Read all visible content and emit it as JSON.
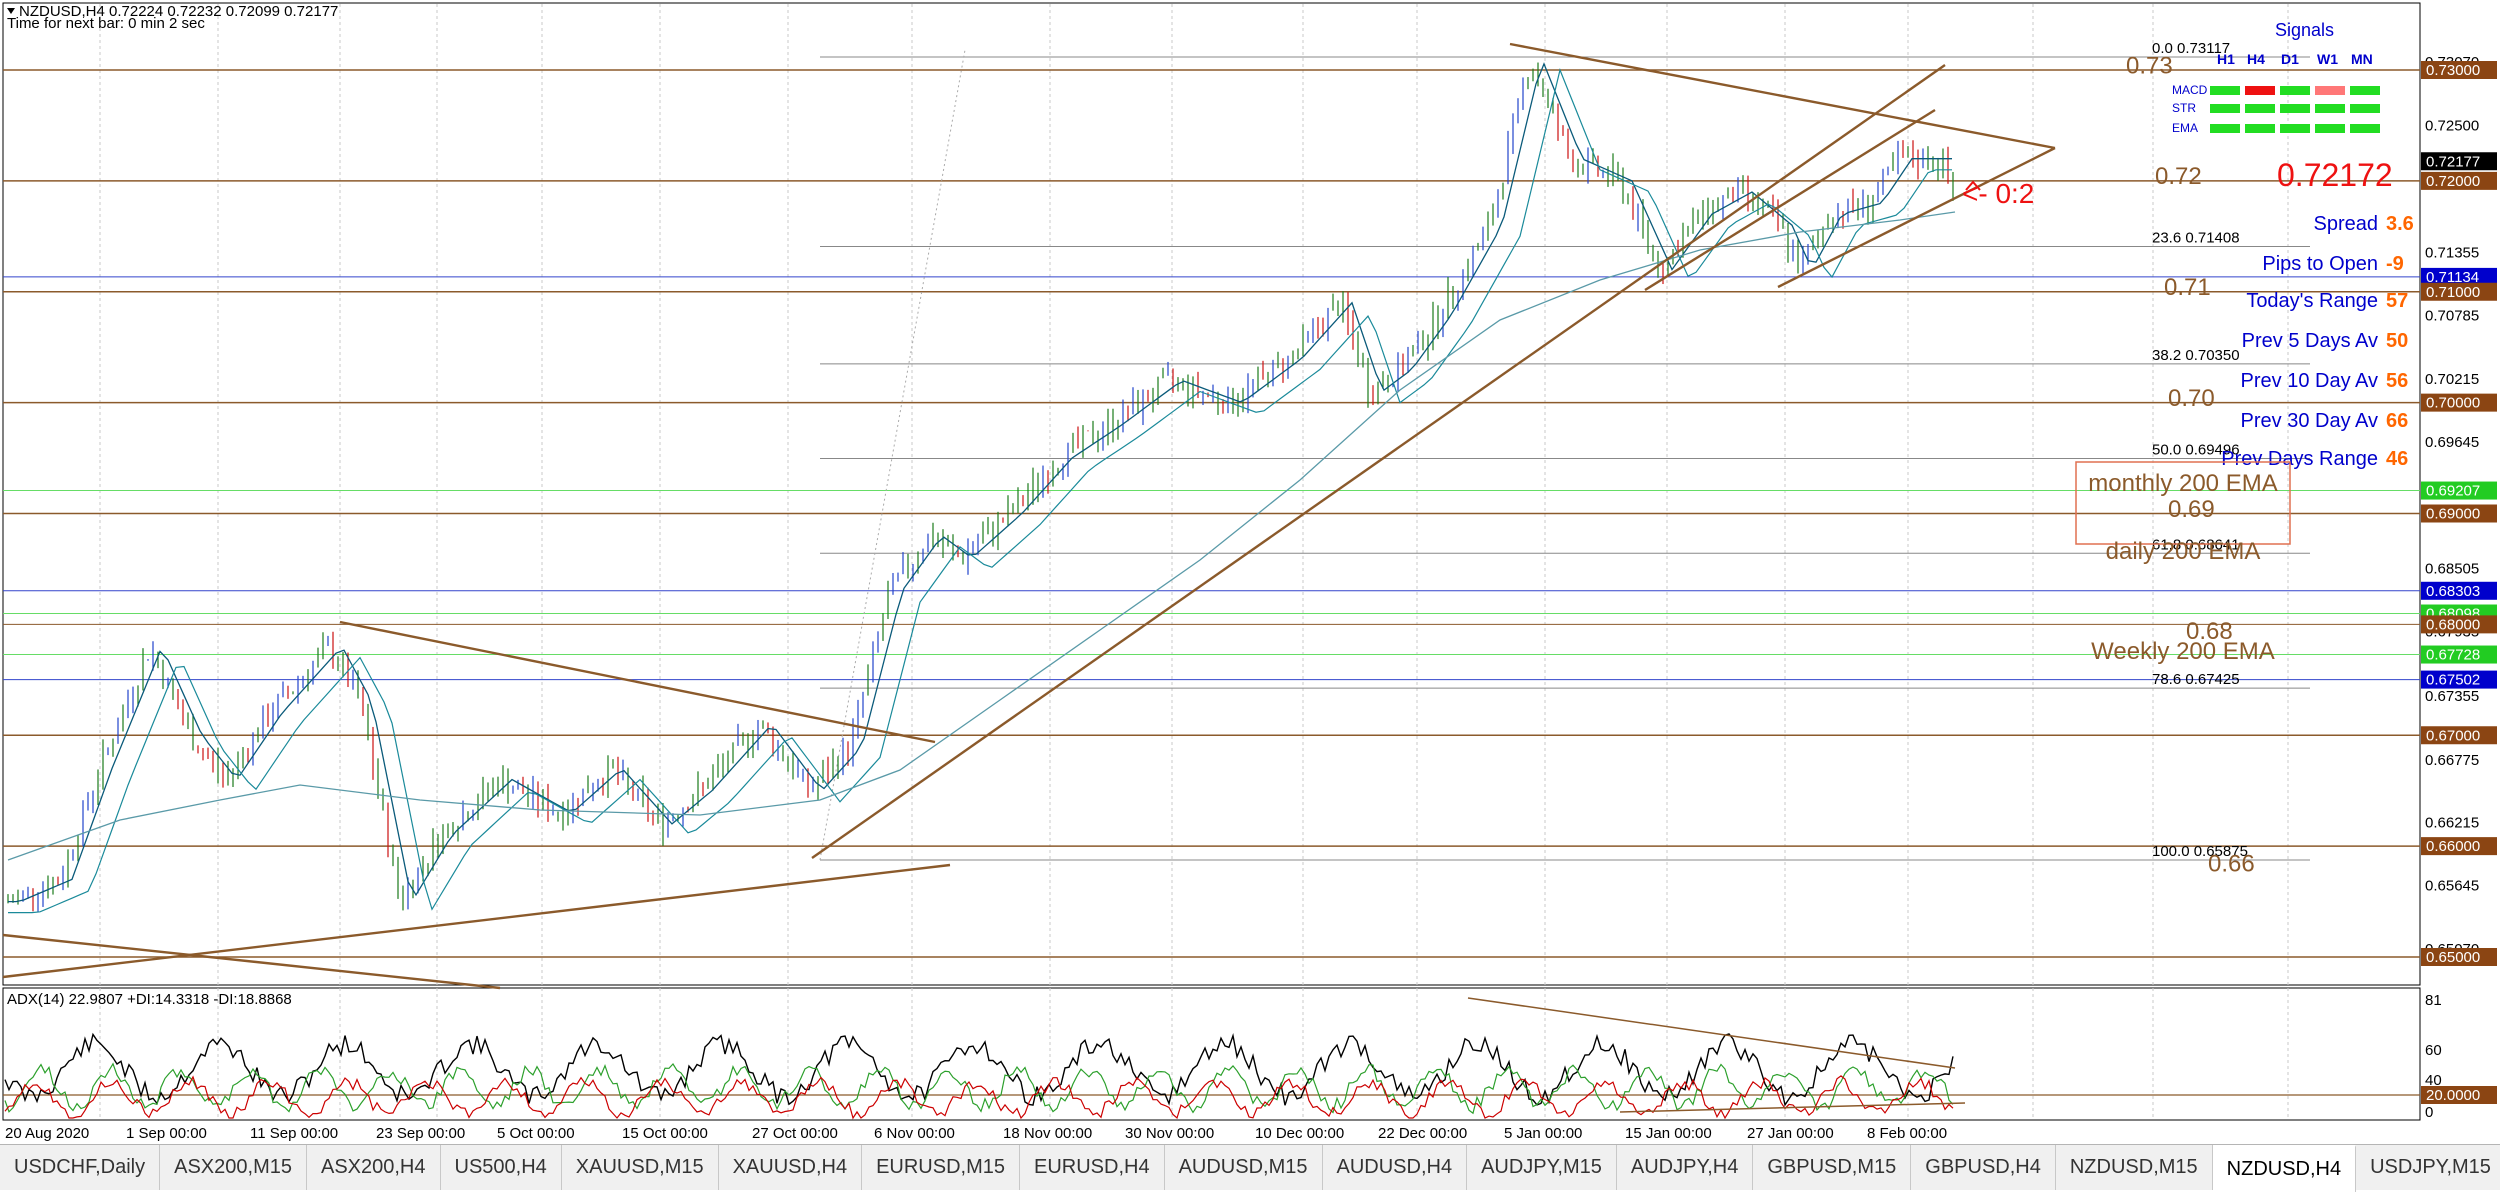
{
  "header": {
    "line1": "NZDUSD,H4  0.72224 0.72232 0.72099 0.72177",
    "line2": "Time for next bar: 0 min 2 sec"
  },
  "indicator_header": "ADX(14) 22.9807 +DI:14.3318 -DI:18.8868",
  "colors": {
    "background": "#ffffff",
    "level_line": "#8b5a2b",
    "trend_line": "#8b5a2b",
    "price_box_brown": "#8b4513",
    "price_box_blue": "#0000cc",
    "price_box_green": "#22cc22",
    "price_box_black": "#000000",
    "adx_line": "#000000",
    "plus_di": "#2ca02c",
    "minus_di": "#cc0000",
    "signal_green": "#22dd22",
    "signal_red": "#ee1111",
    "signal_pink": "#ff7777",
    "info_blue": "#0000cc",
    "info_orange": "#ff6600"
  },
  "axis": {
    "price_labels": [
      "0.73070",
      "0.72500",
      "0.71355",
      "0.70785",
      "0.70215",
      "0.69645",
      "0.68505",
      "0.67935",
      "0.67355",
      "0.66775",
      "0.66215",
      "0.65645",
      "0.65070"
    ],
    "price_boxes": [
      {
        "text": "0.73000",
        "color": "brown"
      },
      {
        "text": "0.72177",
        "color": "black"
      },
      {
        "text": "0.72000",
        "color": "brown"
      },
      {
        "text": "0.71134",
        "color": "blue"
      },
      {
        "text": "0.71000",
        "color": "brown"
      },
      {
        "text": "0.70000",
        "color": "brown"
      },
      {
        "text": "0.69207",
        "color": "green"
      },
      {
        "text": "0.69000",
        "color": "brown"
      },
      {
        "text": "0.68303",
        "color": "blue"
      },
      {
        "text": "0.68098",
        "color": "green"
      },
      {
        "text": "0.68000",
        "color": "brown"
      },
      {
        "text": "0.67728",
        "color": "green"
      },
      {
        "text": "0.67502",
        "color": "blue"
      },
      {
        "text": "0.67000",
        "color": "brown"
      },
      {
        "text": "0.66000",
        "color": "brown"
      },
      {
        "text": "0.65000",
        "color": "brown"
      }
    ],
    "adx_labels": [
      "81",
      "60",
      "40",
      "0"
    ],
    "adx_box": "20.0000",
    "time_labels": [
      "20 Aug 2020",
      "1 Sep 00:00",
      "11 Sep 00:00",
      "23 Sep 00:00",
      "5 Oct 00:00",
      "15 Oct 00:00",
      "27 Oct 00:00",
      "6 Nov 00:00",
      "18 Nov 00:00",
      "30 Nov 00:00",
      "10 Dec 00:00",
      "22 Dec 00:00",
      "5 Jan 00:00",
      "15 Jan 00:00",
      "27 Jan 00:00",
      "8 Feb 00:00"
    ]
  },
  "fib_labels": [
    {
      "pct": "0.0",
      "price": "0.73117"
    },
    {
      "pct": "23.6",
      "price": "0.71408"
    },
    {
      "pct": "38.2",
      "price": "0.70350"
    },
    {
      "pct": "50.0",
      "price": "0.69496"
    },
    {
      "pct": "61.8",
      "price": "0.68641"
    },
    {
      "pct": "78.6",
      "price": "0.67425"
    },
    {
      "pct": "100.0",
      "price": "0.65875"
    }
  ],
  "level_labels": [
    "0.73",
    "0.72",
    "0.71",
    "0.70",
    "0.69",
    "0.68",
    "0.66"
  ],
  "ema_labels": {
    "monthly": "monthly 200 EMA",
    "daily": "daily 200 EMA",
    "weekly": "Weekly 200 EMA"
  },
  "signals": {
    "title": "Signals",
    "columns": [
      "H1",
      "H4",
      "D1",
      "W1",
      "MN"
    ],
    "rows": [
      {
        "name": "MACD",
        "cells": [
          "green",
          "red",
          "green",
          "pink",
          "green"
        ]
      },
      {
        "name": "STR",
        "cells": [
          "green",
          "green",
          "green",
          "green",
          "green"
        ]
      },
      {
        "name": "EMA",
        "cells": [
          "green",
          "green",
          "green",
          "green",
          "green"
        ]
      }
    ]
  },
  "current_price": "0.72172",
  "countdown": "<- 0:2",
  "info": [
    {
      "label": "Spread",
      "value": "3.6"
    },
    {
      "label": "Pips to Open",
      "value": "-9"
    },
    {
      "label": "Today's Range",
      "value": "57"
    },
    {
      "label": "Prev 5 Days Av",
      "value": "50"
    },
    {
      "label": "Prev 10 Day Av",
      "value": "56"
    },
    {
      "label": "Prev 30 Day Av",
      "value": "66"
    },
    {
      "label": "Prev Days Range",
      "value": "46"
    }
  ],
  "tabs": [
    {
      "label": "USDCHF,Daily",
      "active": false
    },
    {
      "label": "ASX200,M15",
      "active": false
    },
    {
      "label": "ASX200,H4",
      "active": false
    },
    {
      "label": "US500,H4",
      "active": false
    },
    {
      "label": "XAUUSD,M15",
      "active": false
    },
    {
      "label": "XAUUSD,H4",
      "active": false
    },
    {
      "label": "EURUSD,M15",
      "active": false
    },
    {
      "label": "EURUSD,H4",
      "active": false
    },
    {
      "label": "AUDUSD,M15",
      "active": false
    },
    {
      "label": "AUDUSD,H4",
      "active": false
    },
    {
      "label": "AUDJPY,M15",
      "active": false
    },
    {
      "label": "AUDJPY,H4",
      "active": false
    },
    {
      "label": "GBPUSD,M15",
      "active": false
    },
    {
      "label": "GBPUSD,H4",
      "active": false
    },
    {
      "label": "NZDUSD,M15",
      "active": false
    },
    {
      "label": "NZDUSD,H4",
      "active": true
    },
    {
      "label": "USDJPY,M15",
      "active": false
    }
  ]
}
